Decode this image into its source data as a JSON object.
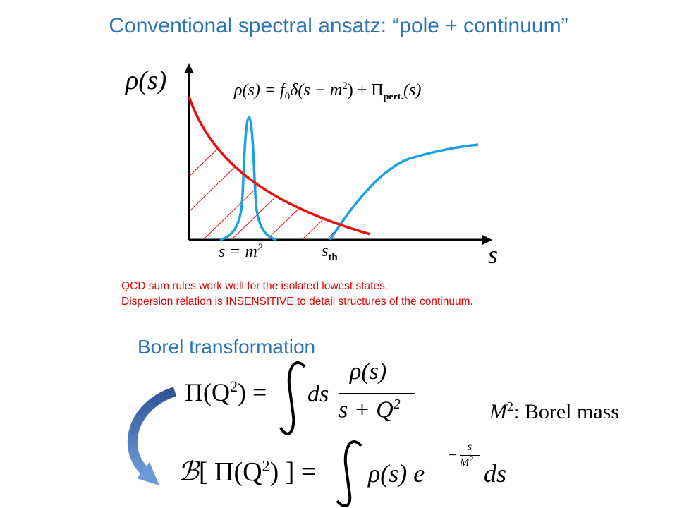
{
  "slide": {
    "title": "Conventional spectral ansatz: “pole + continuum”",
    "notes": [
      "QCD sum rules work well for the isolated lowest states.",
      "Dispersion relation is INSENSITIVE to detail structures of the continuum."
    ],
    "borel_title": "Borel transformation"
  },
  "diagram": {
    "y_axis_label": "ρ(s)",
    "x_axis_label": "s",
    "formula": {
      "lhs": "ρ(s) = f",
      "f_sub": "0",
      "mid": "δ(s − m",
      "sup": "2",
      "rest": ") + Π",
      "pi_sub": "pert.",
      "end": "(s)"
    },
    "tick_pole": {
      "text": "s = m",
      "sup": "2"
    },
    "tick_threshold": {
      "text": "s",
      "sub": "th"
    },
    "colors": {
      "pole": "#1BA1E2",
      "perturbative": "#E8110F",
      "axis": "#000000",
      "arrow": "#4A78C0"
    }
  },
  "equations": {
    "pi_lhs": "Π(Q",
    "pi_lhs_sup": "2",
    "pi_lhs_end": ") =",
    "integrand_ds": "ds",
    "numerator": "ρ(s)",
    "denominator": "s + Q",
    "denominator_sup": "2",
    "borel_lhs_b": "ℬ",
    "borel_lhs": "[ Π(Q",
    "borel_lhs_sup": "2",
    "borel_lhs_end": ") ] =",
    "borel_integrand": "ρ(s) e",
    "exp_num": "s",
    "exp_den": "M",
    "exp_den_sup": "2",
    "borel_ds": "ds",
    "mass_label_var": "M",
    "mass_label_sup": "2",
    "mass_label_text": ":  Borel mass"
  }
}
